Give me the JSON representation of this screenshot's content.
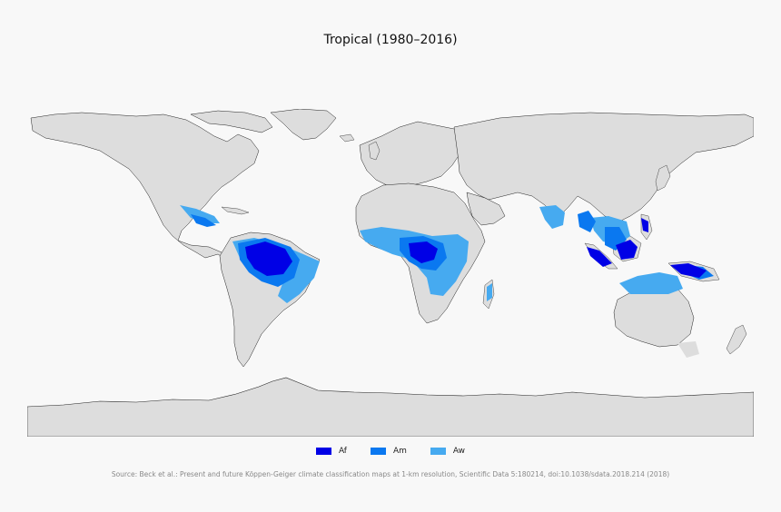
{
  "title": "Tropical (1980–2016)",
  "legend": [
    {
      "label": "Af",
      "color": "#0000e6"
    },
    {
      "label": "Am",
      "color": "#0a78f0"
    },
    {
      "label": "Aw",
      "color": "#46aaf0"
    }
  ],
  "source": "Source: Beck et al.: Present and future Köppen-Geiger climate classification maps at 1-km resolution, Scientific Data 5:180214, doi:10.1038/sdata.2018.214 (2018)",
  "colors": {
    "land": "#dddddd",
    "ocean": "#f8f8f8",
    "border": "#222222",
    "background": "#f8f8f8"
  }
}
